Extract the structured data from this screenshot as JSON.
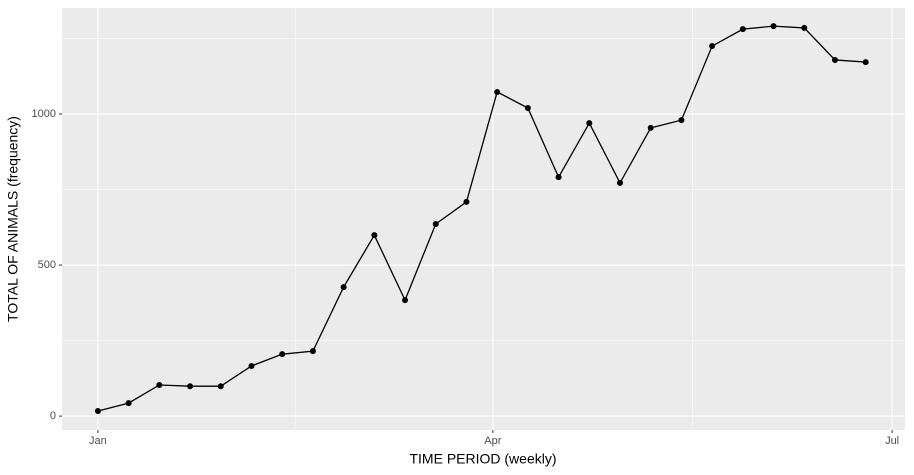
{
  "chart_data": {
    "type": "line",
    "x_label": "TIME PERIOD (weekly)",
    "y_label": "TOTAL OF ANIMALS (frequency)",
    "x": [
      0,
      1,
      2,
      3,
      4,
      5,
      6,
      7,
      8,
      9,
      10,
      11,
      12,
      13,
      14,
      15,
      16,
      17,
      18,
      19,
      20,
      21,
      22,
      23,
      24,
      25
    ],
    "series": [
      {
        "color": "#000000",
        "values": [
          17,
          43,
          103,
          99,
          99,
          166,
          205,
          215,
          427,
          599,
          384,
          636,
          709,
          1073,
          1020,
          791,
          970,
          772,
          954,
          980,
          1225,
          1281,
          1291,
          1285,
          1179,
          1172
        ]
      }
    ],
    "xlim": [
      -1.17,
      26.28
    ],
    "xticks": [
      {
        "value": 0,
        "label": "Jan"
      },
      {
        "value": 12.86,
        "label": "Apr"
      },
      {
        "value": 25.86,
        "label": "Jul"
      }
    ],
    "ylim": [
      -46,
      1351
    ],
    "yticks": [
      0,
      500,
      1000
    ],
    "grid": true
  }
}
